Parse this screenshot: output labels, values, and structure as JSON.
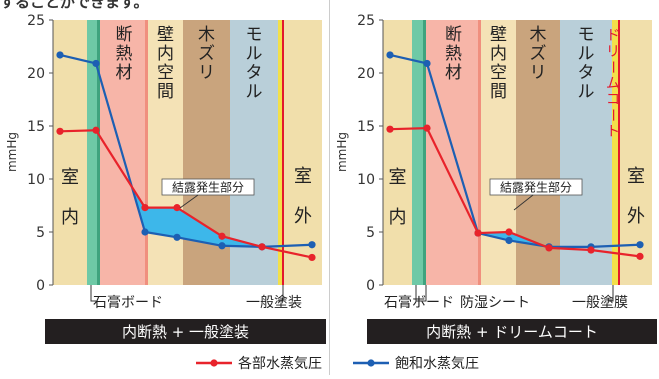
{
  "caption": "することができます。",
  "colors": {
    "room": "#f1dfab",
    "gypsum": "#6ec9a6",
    "insulation": "#f7b5a8",
    "wall_cavity": "#f4e2b6",
    "wood_lath": "#c9a47d",
    "mortar": "#b9cfd9",
    "coat": "#f3e04a",
    "dream_coat_text": "#e3182d",
    "condensation": "#3db7ea",
    "series_partial": "#e8232b",
    "series_saturated": "#1d5fb3",
    "banner": "#231f20"
  },
  "legend": [
    {
      "name": "各部水蒸気圧",
      "color": "#e8232b"
    },
    {
      "name": "飽和水蒸気圧",
      "color": "#1d5fb3"
    }
  ],
  "chart_data": [
    {
      "type": "line",
      "ylabel": "mmHg",
      "ylim": [
        0,
        25
      ],
      "yticks": [
        0,
        5,
        10,
        15,
        20,
        25
      ],
      "grid": false,
      "legend_placement": "bottom",
      "layers": [
        {
          "label": "室内",
          "kind": "room"
        },
        {
          "label": "",
          "kind": "gypsum"
        },
        {
          "label": "断熱材",
          "kind": "insulation"
        },
        {
          "label": "壁内空間",
          "kind": "wall_cavity"
        },
        {
          "label": "木ズリ",
          "kind": "wood_lath"
        },
        {
          "label": "モルタル",
          "kind": "mortar"
        },
        {
          "label": "",
          "kind": "coat"
        },
        {
          "label": "室外",
          "kind": "room"
        }
      ],
      "annotation": "結露発生部分",
      "bottom_labels": [
        "石膏ボード",
        "一般塗装"
      ],
      "title": "内断熱 + 一般塗装",
      "series": [
        {
          "name": "各部水蒸気圧",
          "values": [
            14.5,
            14.6,
            7.3,
            7.3,
            4.6,
            3.6,
            2.6
          ]
        },
        {
          "name": "飽和水蒸気圧",
          "values": [
            21.7,
            20.9,
            5.0,
            4.5,
            3.7,
            3.6,
            3.8
          ]
        }
      ]
    },
    {
      "type": "line",
      "ylabel": "mmHg",
      "ylim": [
        0,
        25
      ],
      "yticks": [
        0,
        5,
        10,
        15,
        20,
        25
      ],
      "grid": false,
      "legend_placement": "bottom",
      "layers": [
        {
          "label": "室内",
          "kind": "room"
        },
        {
          "label": "",
          "kind": "gypsum"
        },
        {
          "label": "断熱材",
          "kind": "insulation"
        },
        {
          "label": "壁内空間",
          "kind": "wall_cavity"
        },
        {
          "label": "木ズリ",
          "kind": "wood_lath"
        },
        {
          "label": "モルタル",
          "kind": "mortar"
        },
        {
          "label": "ドリームコート",
          "kind": "coat"
        },
        {
          "label": "室外",
          "kind": "room"
        }
      ],
      "annotation": "結露発生部分",
      "bottom_labels": [
        "石膏ボード",
        "防湿シート",
        "一般塗膜"
      ],
      "title": "内断熱 + ドリームコート",
      "series": [
        {
          "name": "各部水蒸気圧",
          "values": [
            14.7,
            14.8,
            4.9,
            5.0,
            3.5,
            3.3,
            2.7
          ]
        },
        {
          "name": "飽和水蒸気圧",
          "values": [
            21.7,
            20.9,
            4.9,
            4.2,
            3.6,
            3.6,
            3.8
          ]
        }
      ]
    }
  ]
}
